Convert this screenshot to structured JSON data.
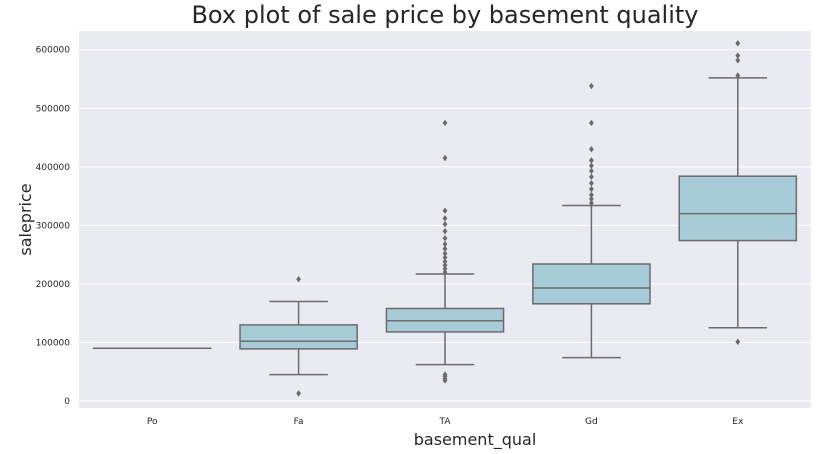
{
  "chart_data": {
    "type": "box",
    "title": "Box plot of sale price by basement quality",
    "xlabel": "basement_qual",
    "ylabel": "saleprice",
    "categories": [
      "Po",
      "Fa",
      "TA",
      "Gd",
      "Ex"
    ],
    "y_ticks": [
      0,
      100000,
      200000,
      300000,
      400000,
      500000,
      600000
    ],
    "y_tick_labels": [
      "0",
      "100000",
      "200000",
      "300000",
      "400000",
      "500000",
      "600000"
    ],
    "ylim": [
      -12000,
      632000
    ],
    "grid": true,
    "box_color": "#a8ccd7",
    "line_color": "#6b6b6b",
    "background_color": "#eaeaf2",
    "boxes": [
      {
        "category": "Po",
        "whisker_low": 90000,
        "q1": 90000,
        "median": 90000,
        "q3": 90000,
        "whisker_high": 90000,
        "outliers": []
      },
      {
        "category": "Fa",
        "whisker_low": 45000,
        "q1": 89000,
        "median": 102000,
        "q3": 130000,
        "whisker_high": 170000,
        "outliers": [
          13000,
          208000
        ]
      },
      {
        "category": "TA",
        "whisker_low": 62000,
        "q1": 118000,
        "median": 137000,
        "q3": 158000,
        "whisker_high": 217000,
        "outliers": [
          35000,
          38000,
          42000,
          45000,
          220000,
          226000,
          232000,
          238000,
          245000,
          252000,
          260000,
          268000,
          278000,
          290000,
          302000,
          312000,
          325000,
          415000,
          475000
        ]
      },
      {
        "category": "Gd",
        "whisker_low": 74000,
        "q1": 166000,
        "median": 193000,
        "q3": 234000,
        "whisker_high": 334000,
        "outliers": [
          338000,
          345000,
          352000,
          362000,
          372000,
          383000,
          393000,
          402000,
          411000,
          430000,
          475000,
          538000
        ]
      },
      {
        "category": "Ex",
        "whisker_low": 125000,
        "q1": 274000,
        "median": 320000,
        "q3": 384000,
        "whisker_high": 552000,
        "outliers": [
          101000,
          556000,
          582000,
          590000,
          611000
        ]
      }
    ]
  }
}
